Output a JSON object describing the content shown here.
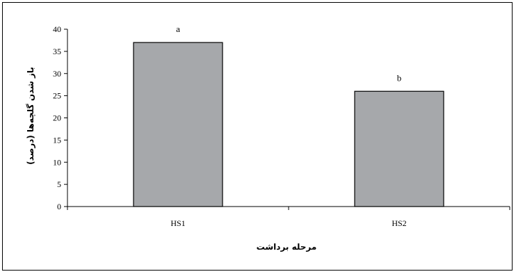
{
  "chart_data": {
    "type": "bar",
    "categories": [
      "HS1",
      "HS2"
    ],
    "values": [
      37,
      26
    ],
    "data_labels": [
      "a",
      "b"
    ],
    "xlabel": "مرحله برداشت",
    "ylabel": "باز شدن گلچه‌ها (درصد)",
    "ylim": [
      0,
      40
    ],
    "yticks": [
      0,
      5,
      10,
      15,
      20,
      25,
      30,
      35,
      40
    ],
    "grid": false,
    "legend": "none",
    "colors": {
      "bar_fill": "#a6a8ab",
      "bar_stroke": "#000000",
      "axis": "#000000"
    }
  }
}
